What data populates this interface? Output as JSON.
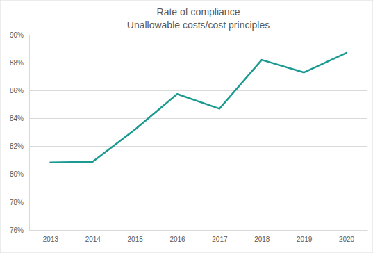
{
  "chart_data": {
    "type": "line",
    "title": "Rate of compliance",
    "subtitle": "Unallowable costs/cost principles",
    "categories": [
      "2013",
      "2014",
      "2015",
      "2016",
      "2017",
      "2018",
      "2019",
      "2020"
    ],
    "values": [
      80.85,
      80.9,
      83.2,
      85.75,
      84.7,
      88.2,
      87.3,
      88.7
    ],
    "color": "#1a9a91",
    "ylim": [
      76,
      90
    ],
    "yticks": [
      {
        "value": 76,
        "label": "76%"
      },
      {
        "value": 78,
        "label": "78%"
      },
      {
        "value": 80,
        "label": "80%"
      },
      {
        "value": 82,
        "label": "82%"
      },
      {
        "value": 84,
        "label": "84%"
      },
      {
        "value": 86,
        "label": "86%"
      },
      {
        "value": 88,
        "label": "88%"
      },
      {
        "value": 90,
        "label": "90%"
      }
    ],
    "grid": true
  }
}
